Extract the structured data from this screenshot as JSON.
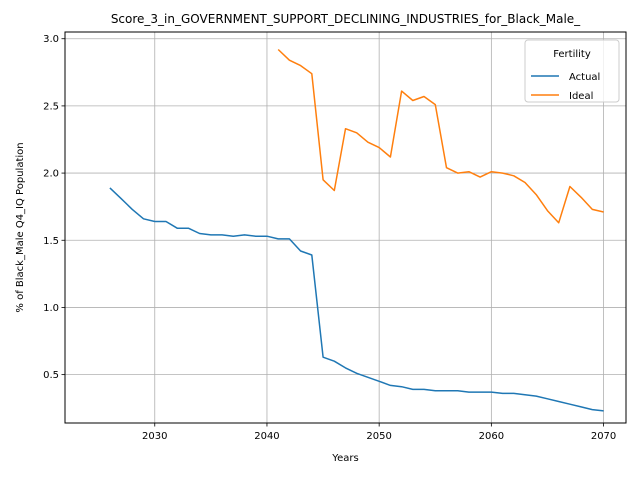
{
  "chart_data": {
    "type": "line",
    "title": "Score_3_in_GOVERNMENT_SUPPORT_DECLINING_INDUSTRIES_for_Black_Male_",
    "xlabel": "Years",
    "ylabel": "% of Black_Male Q4_IQ Population",
    "xlim": [
      2022,
      2072
    ],
    "ylim": [
      0.14,
      3.05
    ],
    "xticks": [
      2030,
      2040,
      2050,
      2060,
      2070
    ],
    "xtick_labels": [
      "2030",
      "2040",
      "2050",
      "2060",
      "2070"
    ],
    "yticks": [
      0.5,
      1.0,
      1.5,
      2.0,
      2.5,
      3.0
    ],
    "ytick_labels": [
      "0.5",
      "1.0",
      "1.5",
      "2.0",
      "2.5",
      "3.0"
    ],
    "grid": true,
    "legend": {
      "title": "Fertility",
      "placement": "top-right"
    },
    "series": [
      {
        "name": "Actual",
        "color": "#1f77b4",
        "x": [
          2026,
          2027,
          2028,
          2029,
          2030,
          2031,
          2032,
          2033,
          2034,
          2035,
          2036,
          2037,
          2038,
          2039,
          2040,
          2041,
          2042,
          2043,
          2044,
          2045,
          2046,
          2047,
          2048,
          2049,
          2050,
          2051,
          2052,
          2053,
          2054,
          2055,
          2056,
          2057,
          2058,
          2059,
          2060,
          2061,
          2062,
          2063,
          2064,
          2065,
          2066,
          2067,
          2068,
          2069,
          2070
        ],
        "values": [
          1.89,
          1.81,
          1.73,
          1.66,
          1.64,
          1.64,
          1.59,
          1.59,
          1.55,
          1.54,
          1.54,
          1.53,
          1.54,
          1.53,
          1.53,
          1.51,
          1.51,
          1.42,
          1.39,
          0.63,
          0.6,
          0.55,
          0.51,
          0.48,
          0.45,
          0.42,
          0.41,
          0.39,
          0.39,
          0.38,
          0.38,
          0.38,
          0.37,
          0.37,
          0.37,
          0.36,
          0.36,
          0.35,
          0.34,
          0.32,
          0.3,
          0.28,
          0.26,
          0.24,
          0.23
        ]
      },
      {
        "name": "Ideal",
        "color": "#ff7f0e",
        "x": [
          2041,
          2042,
          2043,
          2044,
          2045,
          2046,
          2047,
          2048,
          2049,
          2050,
          2051,
          2052,
          2053,
          2054,
          2055,
          2056,
          2057,
          2058,
          2059,
          2060,
          2061,
          2062,
          2063,
          2064,
          2065,
          2066,
          2067,
          2068,
          2069,
          2070
        ],
        "values": [
          2.92,
          2.84,
          2.8,
          2.74,
          1.95,
          1.87,
          2.33,
          2.3,
          2.23,
          2.19,
          2.12,
          2.61,
          2.54,
          2.57,
          2.51,
          2.04,
          2.0,
          2.01,
          1.97,
          2.01,
          2.0,
          1.98,
          1.93,
          1.84,
          1.72,
          1.63,
          1.9,
          1.82,
          1.73,
          1.71
        ]
      }
    ]
  }
}
